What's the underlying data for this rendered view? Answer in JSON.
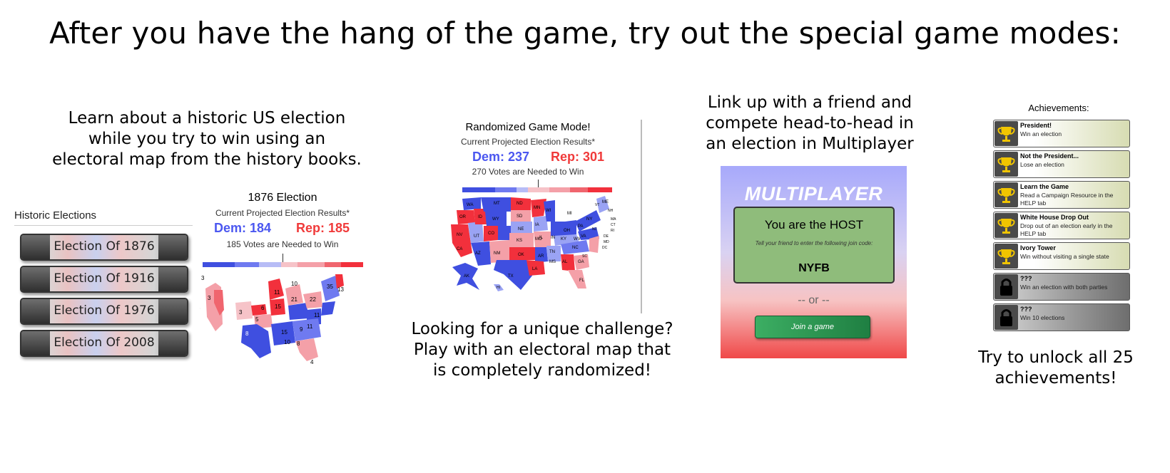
{
  "headline": "After you have the hang of the game, try out the special game modes:",
  "historic": {
    "caption_lines": [
      "Learn about a historic US election",
      "while you try to win using an",
      "electoral map from the history books."
    ],
    "panel_title": "Historic Elections",
    "buttons": [
      "Election Of 1876",
      "Election Of 1916",
      "Election Of 1976",
      "Election Of 2008"
    ],
    "results": {
      "title": "1876 Election",
      "subtitle": "Current Projected Election Results*",
      "dem": "Dem: 184",
      "rep": "Rep: 185",
      "needed": "185 Votes are Needed to Win"
    },
    "map_numbers": [
      "3",
      "3",
      "6",
      "3",
      "5",
      "6",
      "11",
      "10",
      "21",
      "15",
      "22",
      "11",
      "35",
      "13",
      "8",
      "15",
      "9",
      "10",
      "11",
      "8",
      "4",
      "5",
      "15",
      "3",
      "8",
      "7"
    ]
  },
  "random": {
    "title": "Randomized Game Mode!",
    "subtitle": "Current Projected Election Results*",
    "dem": "Dem: 237",
    "rep": "Rep: 301",
    "needed": "270 Votes are Needed to Win",
    "caption_lines": [
      "Looking for a unique challenge?",
      "Play with an electoral map that",
      "is completely randomized!"
    ],
    "state_labels": [
      "WA",
      "MT",
      "ND",
      "MN",
      "WI",
      "MI",
      "OR",
      "ID",
      "WY",
      "SD",
      "IA",
      "NY",
      "VT",
      "ME",
      "NV",
      "UT",
      "CO",
      "NE",
      "IL",
      "IN",
      "OH",
      "PA",
      "NJ",
      "CA",
      "AZ",
      "NM",
      "KS",
      "MO",
      "KY",
      "WV",
      "VA",
      "OK",
      "AR",
      "TN",
      "NC",
      "TX",
      "LA",
      "MS",
      "AL",
      "GA",
      "SC",
      "FL",
      "AK",
      "HI",
      "NH",
      "MA",
      "CT",
      "RI",
      "DE",
      "MD",
      "DC"
    ]
  },
  "multiplayer": {
    "caption_lines": [
      "Link up with a friend and",
      "compete head-to-head in",
      "an election in Multiplayer"
    ],
    "title": "MULTIPLAYER",
    "host": "You are the HOST",
    "tell": "Tell your friend to enter the following join code:",
    "code": "NYFB",
    "or": "-- or --",
    "join": "Join a game"
  },
  "achievements": {
    "title": "Achievements:",
    "items": [
      {
        "name": "President!",
        "desc": "Win an election",
        "locked": false
      },
      {
        "name": "Not the President...",
        "desc": "Lose an election",
        "locked": false
      },
      {
        "name": "Learn the Game",
        "desc": "Read a Campaign Resource in the HELP tab",
        "locked": false
      },
      {
        "name": "White House Drop Out",
        "desc": "Drop out of an election early in the HELP tab",
        "locked": false
      },
      {
        "name": "Ivory Tower",
        "desc": "Win without visiting a single state",
        "locked": false
      },
      {
        "name": "???",
        "desc": "Win an election with both parties",
        "locked": true
      },
      {
        "name": "???",
        "desc": "Win 10 elections",
        "locked": true
      }
    ],
    "caption_lines": [
      "Try to unlock all 25",
      "achievements!"
    ]
  },
  "colors": {
    "dem": "#4b57f0",
    "rep": "#f03a3a",
    "safe_dem": "#3f4fe0",
    "lean_dem": "#9aa3f4",
    "safe_rep": "#f2303c",
    "lean_rep": "#f4a0a8",
    "trophy": "#f1c500"
  }
}
